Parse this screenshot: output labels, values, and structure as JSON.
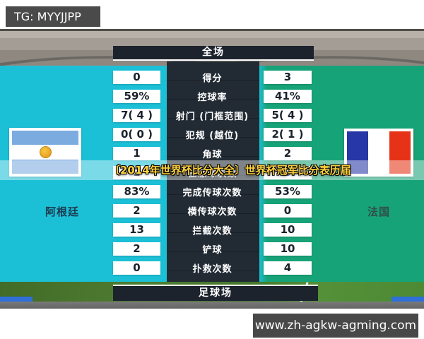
{
  "watermarks": {
    "tg": "TG: MYYJJPP",
    "url": "www.zh-agkw-agming.com"
  },
  "overlay_title": "〔2014年世界杯比分大全〕世界杯冠军比分表历届",
  "scoreboard": {
    "header": "全场",
    "footer": "足球场",
    "home_team": "阿根廷",
    "away_team": "法国",
    "rows": [
      {
        "label": "得分",
        "home": "0",
        "away": "3"
      },
      {
        "label": "控球率",
        "home": "59%",
        "away": "41%"
      },
      {
        "label": "射门 (门框范围)",
        "home": "7( 4 )",
        "away": "5( 4 )"
      },
      {
        "label": "犯规 (越位)",
        "home": "0( 0 )",
        "away": "2( 1 )"
      },
      {
        "label": "角球",
        "home": "1",
        "away": "2"
      },
      {
        "label": "任意球次数",
        "home": "2",
        "away": "0",
        "highlighted": true
      },
      {
        "label": "完成传球次数",
        "home": "83%",
        "away": "53%"
      },
      {
        "label": "横传球次数",
        "home": "2",
        "away": "0"
      },
      {
        "label": "拦截次数",
        "home": "13",
        "away": "10"
      },
      {
        "label": "铲球",
        "home": "2",
        "away": "10"
      },
      {
        "label": "扑救次数",
        "home": "0",
        "away": "4"
      }
    ]
  },
  "colors": {
    "left_bg_cyan": "#1cc0d6",
    "right_bg_green": "#17a378",
    "bar_dark": "#1c232d",
    "center_col_dark": "#222b34",
    "value_text": "#18222c",
    "overlay_yellow": "#ffd23e",
    "watermark_bg": "#4a4a4a",
    "argentina_blue": "#7cabe0",
    "france_blue": "#2737a5",
    "france_red": "#e63317",
    "sun_gold": "#e8a125"
  }
}
